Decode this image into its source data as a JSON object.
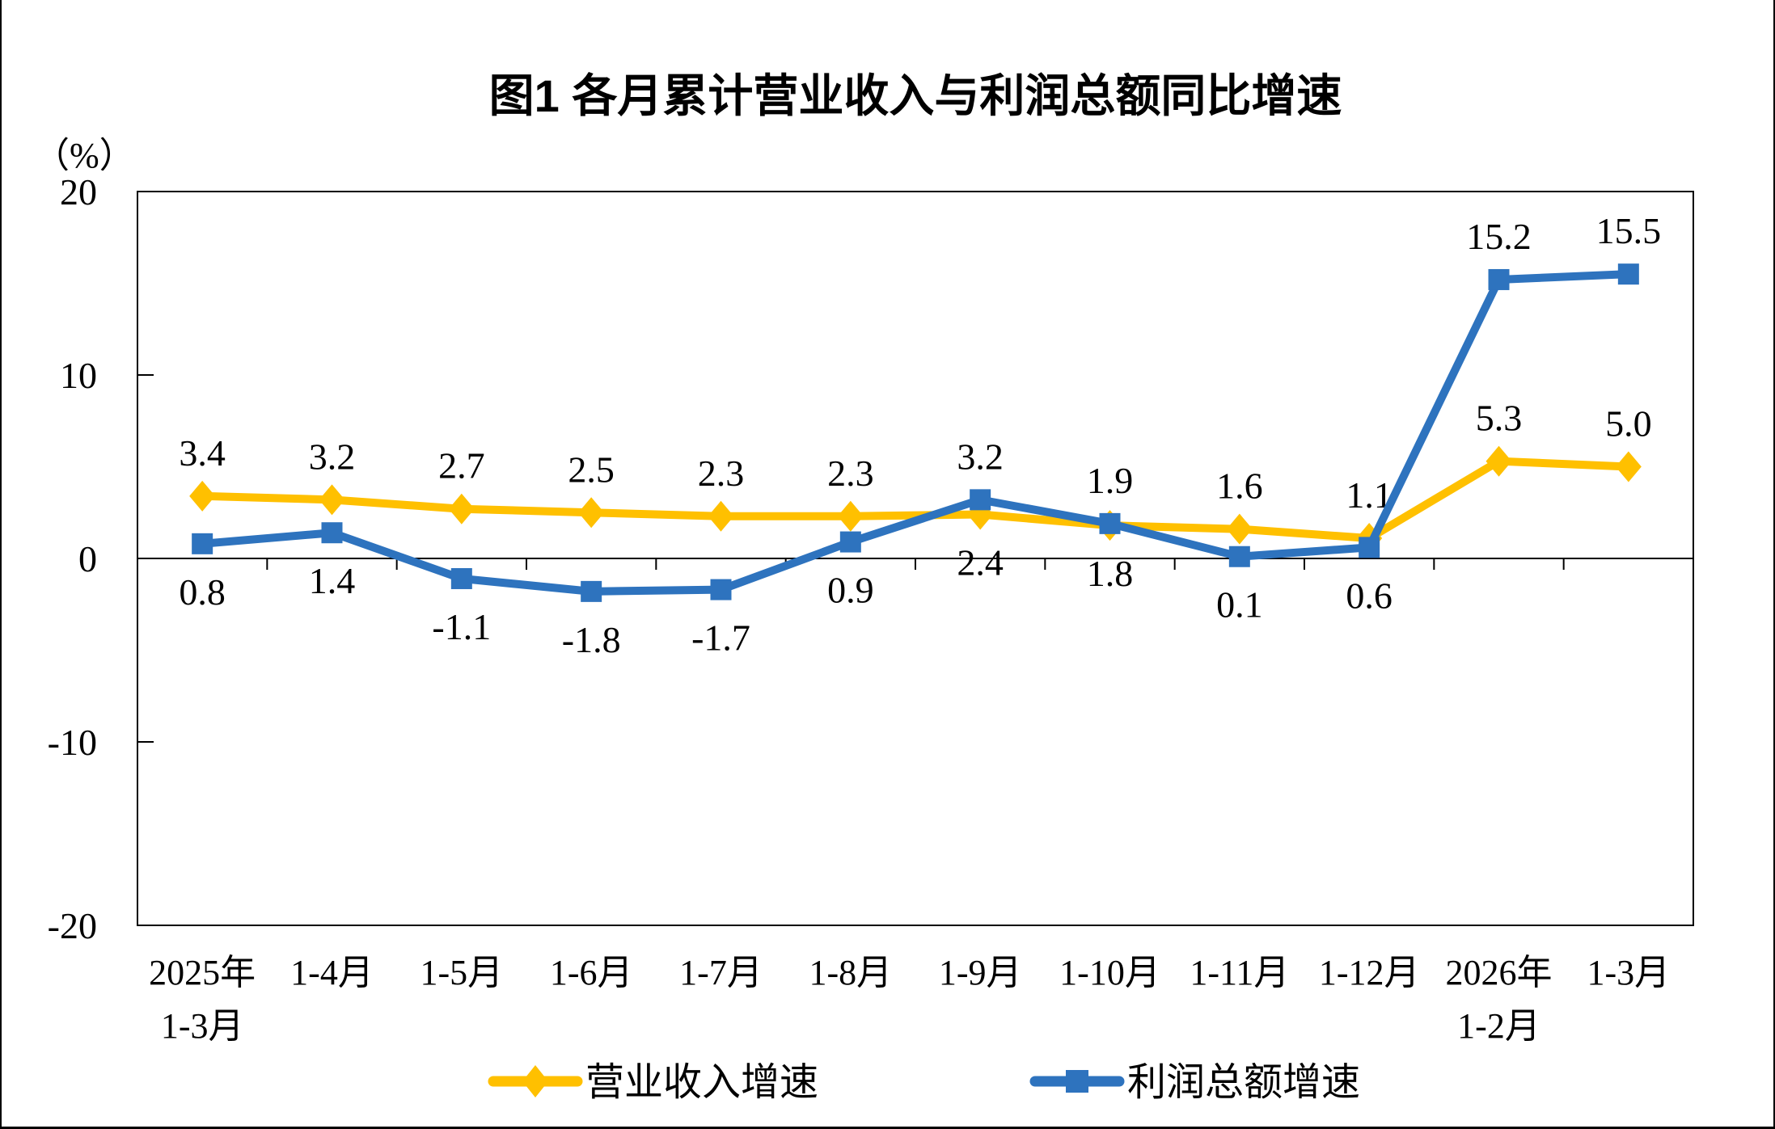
{
  "chart_data": {
    "type": "line",
    "title": "图1  各月累计营业收入与利润总额同比增速",
    "y_unit_label": "（%）",
    "ylim": [
      -20,
      20
    ],
    "yticks": [
      "20",
      "10",
      "0",
      "-10",
      "-20"
    ],
    "grid": false,
    "legend_position": "bottom",
    "axis_color": "#000000",
    "categories": [
      {
        "line1": "2025年",
        "line2": "1-3月"
      },
      {
        "line1": "1-4月",
        "line2": ""
      },
      {
        "line1": "1-5月",
        "line2": ""
      },
      {
        "line1": "1-6月",
        "line2": ""
      },
      {
        "line1": "1-7月",
        "line2": ""
      },
      {
        "line1": "1-8月",
        "line2": ""
      },
      {
        "line1": "1-9月",
        "line2": ""
      },
      {
        "line1": "1-10月",
        "line2": ""
      },
      {
        "line1": "1-11月",
        "line2": ""
      },
      {
        "line1": "1-12月",
        "line2": ""
      },
      {
        "line1": "2026年",
        "line2": "1-2月"
      },
      {
        "line1": "1-3月",
        "line2": ""
      }
    ],
    "series": [
      {
        "name": "营业收入增速",
        "color": "#FFC000",
        "marker": "diamond",
        "values": [
          3.4,
          3.2,
          2.7,
          2.5,
          2.3,
          2.3,
          2.4,
          1.8,
          1.6,
          1.1,
          5.3,
          5.0
        ],
        "labels": [
          "3.4",
          "3.2",
          "2.7",
          "2.5",
          "2.3",
          "2.3",
          "2.4",
          "1.8",
          "1.6",
          "1.1",
          "5.3",
          "5.0"
        ],
        "label_side": [
          "above",
          "above",
          "above",
          "above",
          "above",
          "above",
          "below",
          "below",
          "above",
          "above",
          "above",
          "above"
        ]
      },
      {
        "name": "利润总额增速",
        "color": "#2E73BE",
        "marker": "square",
        "values": [
          0.8,
          1.4,
          -1.1,
          -1.8,
          -1.7,
          0.9,
          3.2,
          1.9,
          0.1,
          0.6,
          15.2,
          15.5
        ],
        "labels": [
          "0.8",
          "1.4",
          "-1.1",
          "-1.8",
          "-1.7",
          "0.9",
          "3.2",
          "1.9",
          "0.1",
          "0.6",
          "15.2",
          "15.5"
        ],
        "label_side": [
          "below",
          "below",
          "below",
          "below",
          "below",
          "below",
          "above",
          "above",
          "below",
          "below",
          "above",
          "above"
        ]
      }
    ]
  }
}
